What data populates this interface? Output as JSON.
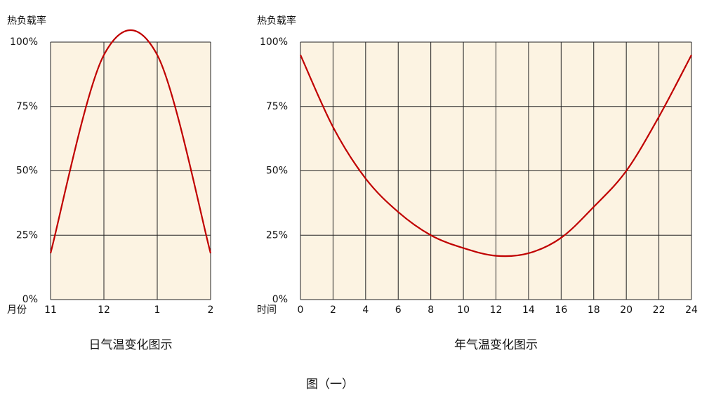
{
  "chart_data": [
    {
      "type": "line",
      "y_label": "热负载率",
      "x_label": "月份",
      "caption": "日气温变化图示",
      "categories": [
        "11",
        "12",
        "1",
        "2"
      ],
      "series": [
        {
          "color": "#c00000",
          "values": [
            18,
            95,
            95,
            18
          ]
        }
      ],
      "ylim": [
        0,
        100
      ],
      "yticks": [
        {
          "value": 0,
          "label": "0%"
        },
        {
          "value": 25,
          "label": "25%"
        },
        {
          "value": 50,
          "label": "50%"
        },
        {
          "value": 75,
          "label": "75%"
        },
        {
          "value": 100,
          "label": "100%"
        }
      ],
      "grid": true
    },
    {
      "type": "line",
      "y_label": "热负载率",
      "x_label": "时间",
      "caption": "年气温变化图示",
      "x": [
        0,
        2,
        4,
        6,
        8,
        10,
        12,
        14,
        16,
        18,
        20,
        22,
        24
      ],
      "series": [
        {
          "color": "#c00000",
          "values": [
            95,
            67,
            47,
            34,
            25,
            20,
            17,
            18,
            24,
            36,
            50,
            71,
            95
          ]
        }
      ],
      "xlim": [
        0,
        24
      ],
      "xticks": [
        0,
        2,
        4,
        6,
        8,
        10,
        12,
        14,
        16,
        18,
        20,
        22,
        24
      ],
      "ylim": [
        0,
        100
      ],
      "yticks": [
        {
          "value": 0,
          "label": "0%"
        },
        {
          "value": 25,
          "label": "25%"
        },
        {
          "value": 50,
          "label": "50%"
        },
        {
          "value": 75,
          "label": "75%"
        },
        {
          "value": 100,
          "label": "100%"
        }
      ],
      "grid": true
    }
  ],
  "figure_caption": "图（一）"
}
